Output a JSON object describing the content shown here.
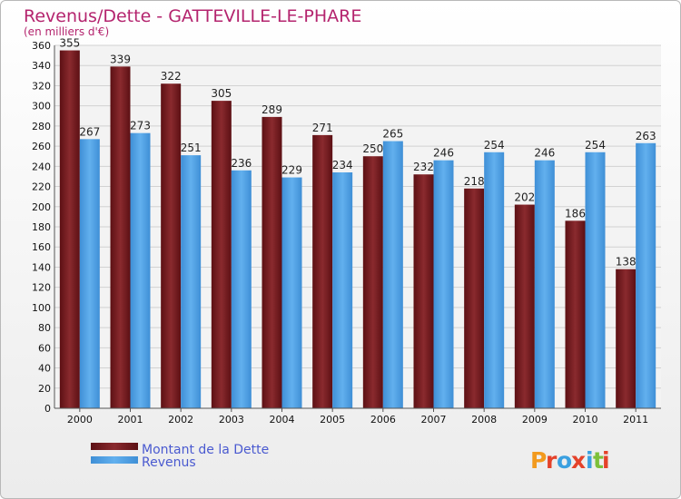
{
  "chart_data": {
    "type": "bar",
    "title": "Revenus/Dette - GATTEVILLE-LE-PHARE",
    "subtitle": "(en milliers d'€)",
    "categories": [
      "2000",
      "2001",
      "2002",
      "2003",
      "2004",
      "2005",
      "2006",
      "2007",
      "2008",
      "2009",
      "2010",
      "2011"
    ],
    "series": [
      {
        "name": "Montant de la Dette",
        "color": "#7a1e22",
        "values": [
          355,
          339,
          322,
          305,
          289,
          271,
          250,
          232,
          218,
          202,
          186,
          138
        ]
      },
      {
        "name": "Revenus",
        "color": "#4d9fe2",
        "values": [
          267,
          273,
          251,
          236,
          229,
          234,
          265,
          246,
          254,
          246,
          254,
          263
        ]
      }
    ],
    "yticks": [
      0,
      20,
      40,
      60,
      80,
      100,
      120,
      140,
      160,
      180,
      200,
      220,
      240,
      260,
      280,
      300,
      320,
      340,
      360
    ],
    "ylim": [
      0,
      360
    ],
    "grid": true,
    "legend_placement": "bottom-left"
  },
  "branding": {
    "logo_letters": [
      "P",
      "r",
      "o",
      "x",
      "i",
      "t",
      "i"
    ],
    "logo_colors": [
      "#f29a1e",
      "#e4422a",
      "#3aa0e0",
      "#e4422a",
      "#3aa0e0",
      "#7cc03a",
      "#e4422a"
    ]
  }
}
